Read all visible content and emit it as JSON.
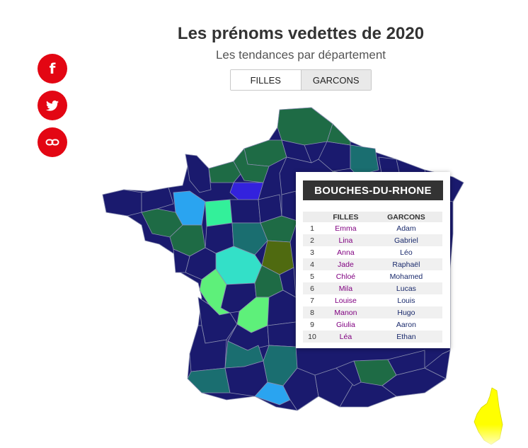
{
  "header": {
    "title": "Les prénoms vedettes de 2020",
    "subtitle": "Les tendances par département"
  },
  "share": [
    {
      "name": "facebook-icon",
      "glyph": "f"
    },
    {
      "name": "twitter-icon"
    },
    {
      "name": "link-icon"
    }
  ],
  "toggle": {
    "filles_label": "FILLES",
    "garcons_label": "GARCONS",
    "selected": "GARCONS"
  },
  "colors": {
    "accent": "#e30613",
    "navy": "#1a1a6e",
    "dark_green": "#1e6b45",
    "teal": "#1a6e70",
    "cyan": "#33d6c4",
    "light_green": "#5ef07a",
    "sky_blue": "#2aa4f0",
    "blue": "#3322dd",
    "olive": "#4f6a10",
    "corsica_yellow": "#ffff00"
  },
  "tooltip": {
    "department": "BOUCHES-DU-RHONE",
    "col_filles": "FILLES",
    "col_garcons": "GARCONS",
    "rows": [
      {
        "rank": "1",
        "fille": "Emma",
        "garcon": "Adam"
      },
      {
        "rank": "2",
        "fille": "Lina",
        "garcon": "Gabriel"
      },
      {
        "rank": "3",
        "fille": "Anna",
        "garcon": "Léo"
      },
      {
        "rank": "4",
        "fille": "Jade",
        "garcon": "Raphaël"
      },
      {
        "rank": "5",
        "fille": "Chloé",
        "garcon": "Mohamed"
      },
      {
        "rank": "6",
        "fille": "Mila",
        "garcon": "Lucas"
      },
      {
        "rank": "7",
        "fille": "Louise",
        "garcon": "Louis"
      },
      {
        "rank": "8",
        "fille": "Manon",
        "garcon": "Hugo"
      },
      {
        "rank": "9",
        "fille": "Giulia",
        "garcon": "Aaron"
      },
      {
        "rank": "10",
        "fille": "Léa",
        "garcon": "Ethan"
      }
    ]
  }
}
